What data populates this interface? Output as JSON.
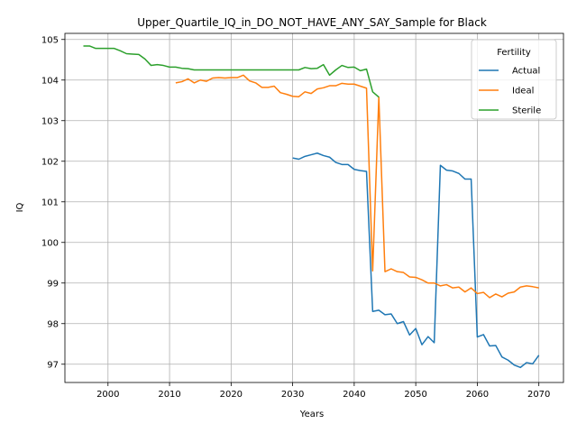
{
  "chart_data": {
    "type": "line",
    "title": "Upper_Quartile_IQ_in_DO_NOT_HAVE_ANY_SAY_Sample for Black",
    "xlabel": "Years",
    "ylabel": "IQ",
    "xlim": [
      1993,
      2074
    ],
    "ylim": [
      96.55,
      105.15
    ],
    "xticks": [
      2000,
      2010,
      2020,
      2030,
      2040,
      2050,
      2060,
      2070
    ],
    "yticks": [
      97,
      98,
      99,
      100,
      101,
      102,
      103,
      104,
      105
    ],
    "grid": true,
    "legend": {
      "title": "Fertility",
      "position": "top-right"
    },
    "series": [
      {
        "name": "Actual",
        "color": "#1f77b4",
        "x": [
          2030,
          2031,
          2032,
          2033,
          2034,
          2035,
          2036,
          2037,
          2038,
          2039,
          2040,
          2041,
          2042,
          2043,
          2044,
          2045,
          2046,
          2047,
          2048,
          2049,
          2050,
          2051,
          2052,
          2053,
          2054,
          2055,
          2056,
          2057,
          2058,
          2059,
          2060,
          2061,
          2062,
          2063,
          2064,
          2065,
          2066,
          2067,
          2068,
          2069,
          2070
        ],
        "y": [
          102.08,
          102.05,
          102.12,
          102.16,
          102.2,
          102.14,
          102.1,
          101.97,
          101.92,
          101.92,
          101.8,
          101.77,
          101.75,
          98.3,
          98.33,
          98.22,
          98.24,
          98.0,
          98.05,
          97.72,
          97.88,
          97.48,
          97.68,
          97.53,
          101.9,
          101.78,
          101.76,
          101.7,
          101.56,
          101.56,
          97.67,
          97.73,
          97.45,
          97.46,
          97.18,
          97.1,
          96.98,
          96.92,
          97.04,
          97.01,
          97.22
        ]
      },
      {
        "name": "Ideal",
        "color": "#ff7f0e",
        "x": [
          2011,
          2012,
          2013,
          2014,
          2015,
          2016,
          2017,
          2018,
          2019,
          2020,
          2021,
          2022,
          2023,
          2024,
          2025,
          2026,
          2027,
          2028,
          2029,
          2030,
          2031,
          2032,
          2033,
          2034,
          2035,
          2036,
          2037,
          2038,
          2039,
          2040,
          2041,
          2042,
          2043,
          2044,
          2045,
          2046,
          2047,
          2048,
          2049,
          2050,
          2051,
          2052,
          2053,
          2054,
          2055,
          2056,
          2057,
          2058,
          2059,
          2060,
          2061,
          2062,
          2063,
          2064,
          2065,
          2066,
          2067,
          2068,
          2069,
          2070
        ],
        "y": [
          103.93,
          103.96,
          104.03,
          103.93,
          104.0,
          103.97,
          104.05,
          104.06,
          104.05,
          104.06,
          104.06,
          104.12,
          103.98,
          103.93,
          103.82,
          103.82,
          103.85,
          103.69,
          103.65,
          103.6,
          103.59,
          103.71,
          103.67,
          103.78,
          103.81,
          103.86,
          103.86,
          103.92,
          103.9,
          103.9,
          103.85,
          103.8,
          99.3,
          103.58,
          99.28,
          99.35,
          99.28,
          99.26,
          99.15,
          99.14,
          99.08,
          99.0,
          99.0,
          98.93,
          98.96,
          98.88,
          98.9,
          98.78,
          98.88,
          98.74,
          98.77,
          98.64,
          98.73,
          98.66,
          98.75,
          98.78,
          98.9,
          98.93,
          98.91,
          98.88
        ]
      },
      {
        "name": "Sterile",
        "color": "#2ca02c",
        "x": [
          1996,
          1997,
          1998,
          1999,
          2000,
          2001,
          2002,
          2003,
          2004,
          2005,
          2006,
          2007,
          2008,
          2009,
          2010,
          2011,
          2012,
          2013,
          2014,
          2015,
          2016,
          2017,
          2018,
          2019,
          2020,
          2021,
          2022,
          2023,
          2024,
          2025,
          2026,
          2027,
          2028,
          2029,
          2030,
          2031,
          2032,
          2033,
          2034,
          2035,
          2036,
          2037,
          2038,
          2039,
          2040,
          2041,
          2042,
          2043,
          2044
        ],
        "y": [
          104.84,
          104.84,
          104.78,
          104.78,
          104.78,
          104.78,
          104.72,
          104.65,
          104.64,
          104.63,
          104.52,
          104.36,
          104.38,
          104.36,
          104.32,
          104.32,
          104.29,
          104.28,
          104.25,
          104.25,
          104.25,
          104.25,
          104.25,
          104.25,
          104.25,
          104.25,
          104.25,
          104.25,
          104.25,
          104.25,
          104.25,
          104.25,
          104.25,
          104.25,
          104.25,
          104.25,
          104.31,
          104.28,
          104.29,
          104.38,
          104.12,
          104.25,
          104.36,
          104.31,
          104.32,
          104.23,
          104.27,
          103.71,
          103.58
        ]
      }
    ]
  }
}
